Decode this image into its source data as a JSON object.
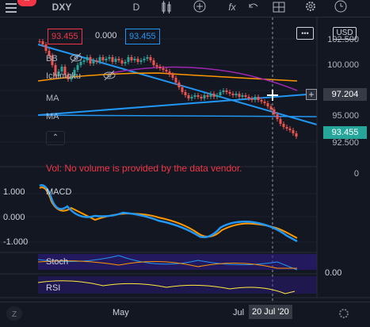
{
  "toolbar": {
    "badge": "--",
    "symbol": "DXY",
    "interval": "D",
    "indicators_label": "fx"
  },
  "legend": {
    "open_value": "93.455",
    "change_value": "0.000",
    "close_value": "93.455",
    "bb_label": "BB",
    "ichimoku_label": "Ichimoku",
    "ma1_label": "MA",
    "ma2_label": "MA",
    "more_label": "•••"
  },
  "price_scale": {
    "currency": "USD",
    "ticks": [
      "102.500",
      "100.000",
      "97.500",
      "95.000",
      "92.500"
    ],
    "crosshair_price": "97.204",
    "last_price": "93.455",
    "zero": "0"
  },
  "volume_note": "Vol: No volume is provided by the data vendor.",
  "macd": {
    "label": "MACD",
    "ticks": [
      "1.000",
      "0.000",
      "-1.000"
    ]
  },
  "stoch": {
    "label": "Stoch",
    "tick": "0.00"
  },
  "rsi": {
    "label": "RSI"
  },
  "time_axis": {
    "labels": [
      "May",
      "Jul",
      "20 Jul '20"
    ]
  },
  "colors": {
    "background": "#131722",
    "accent_blue": "#2196f3",
    "macd_signal": "#ff9800",
    "last_price_teal": "#26a69a",
    "legend_red": "#f23645",
    "vol_note_red": "#f23645",
    "stoch_band": "#7e57c2",
    "rsi_line": "#ffeb3b"
  },
  "icons": [
    "menu-icon",
    "candles-icon",
    "plus-circle-icon",
    "fx-icon",
    "undo-icon",
    "layout-icon",
    "settings-icon",
    "clock-icon"
  ]
}
